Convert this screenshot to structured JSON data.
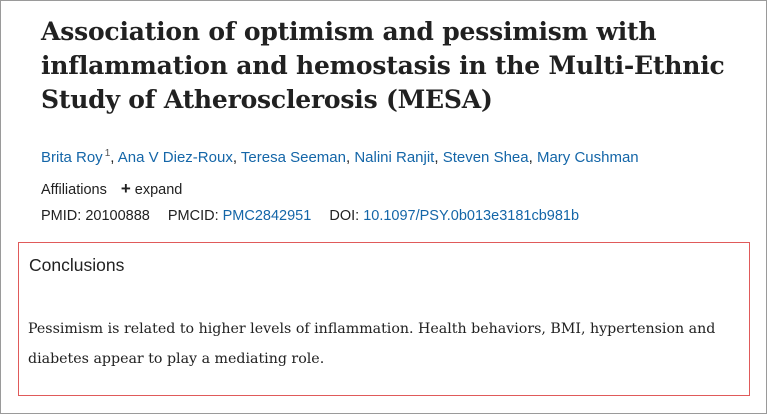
{
  "article": {
    "title": "Association of optimism and pessimism with inflammation and hemostasis in the Multi-Ethnic Study of Atherosclerosis (MESA)",
    "authors": [
      {
        "name": "Brita Roy",
        "sup": "1"
      },
      {
        "name": "Ana V Diez-Roux"
      },
      {
        "name": "Teresa Seeman"
      },
      {
        "name": "Nalini Ranjit"
      },
      {
        "name": "Steven Shea"
      },
      {
        "name": "Mary Cushman"
      }
    ],
    "author_separator": ",",
    "affiliations_label": "Affiliations",
    "expand_symbol": "+",
    "expand_label": "expand",
    "pmid_label": "PMID:",
    "pmid": "20100888",
    "pmcid_label": "PMCID:",
    "pmcid": "PMC2842951",
    "doi_label": "DOI:",
    "doi": "10.1097/PSY.0b013e3181cb981b"
  },
  "conclusions": {
    "heading": "Conclusions",
    "text": "Pessimism is related to higher levels of inflammation. Health behaviors, BMI, hypertension and diabetes appear to play a mediating role."
  },
  "colors": {
    "link": "#1466a8",
    "text": "#212121",
    "highlight_border": "#e05a5a"
  }
}
